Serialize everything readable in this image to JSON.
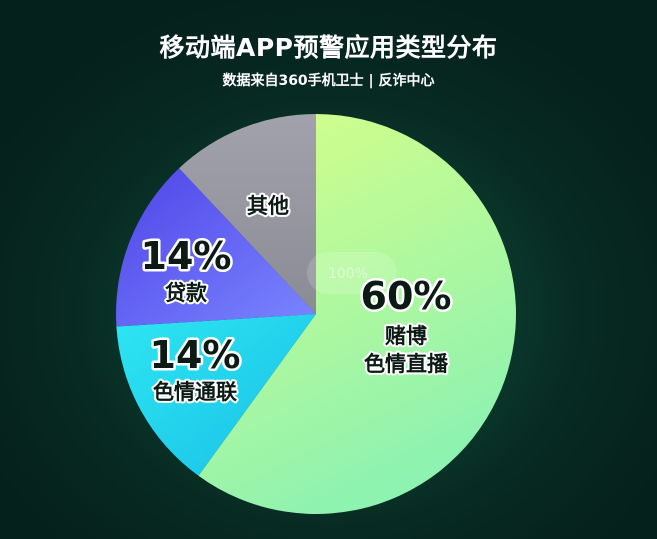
{
  "header": {
    "title": "移动端APP预警应用类型分布",
    "subtitle": "数据来自360手机卫士 | 反诈中心"
  },
  "total_label": "100%",
  "chart_data": {
    "type": "pie",
    "title": "移动端APP预警应用类型分布",
    "subtitle": "数据来自360手机卫士 | 反诈中心",
    "slices": [
      {
        "key": "gambling",
        "label_lines": [
          "赌博",
          "色情直播"
        ],
        "value": 60,
        "value_label": "60%",
        "colors": [
          "#d8ff88",
          "#8ef2b0"
        ]
      },
      {
        "key": "porn",
        "label_lines": [
          "色情通联"
        ],
        "value": 14,
        "value_label": "14%",
        "colors": [
          "#2ee6f2",
          "#18bfe6"
        ]
      },
      {
        "key": "loan",
        "label_lines": [
          "贷款"
        ],
        "value": 14,
        "value_label": "14%",
        "colors": [
          "#4f44e8",
          "#7a86ff"
        ]
      },
      {
        "key": "other",
        "label_lines": [
          "其他"
        ],
        "value": 12,
        "value_label": "",
        "colors": [
          "#a2a2ac",
          "#8b8b96"
        ]
      }
    ]
  }
}
